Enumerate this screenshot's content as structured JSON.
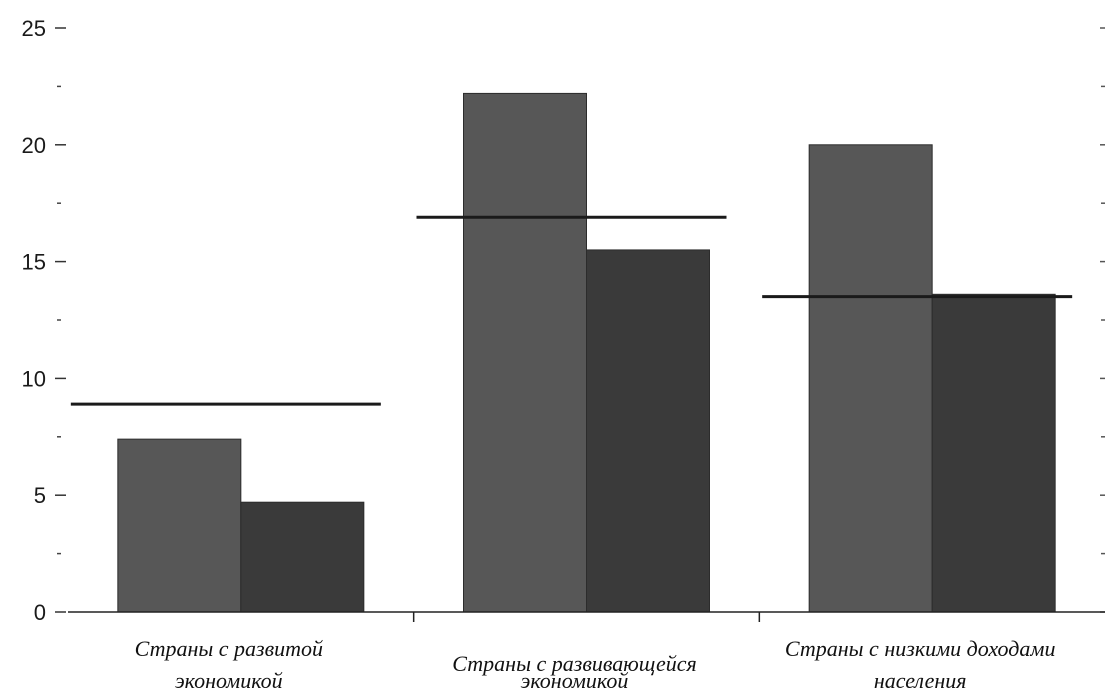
{
  "chart_data": {
    "type": "bar",
    "categories": [
      [
        "Страны с развитой",
        "экономикой"
      ],
      [
        "Страны с развивающейся",
        "экономикой"
      ],
      [
        "Страны с низкими доходами",
        "населения"
      ]
    ],
    "series": [
      {
        "values": [
          7.4,
          22.2,
          20.0
        ],
        "color": "#575757"
      },
      {
        "values": [
          4.7,
          15.5,
          13.6
        ],
        "color": "#3a3a3a"
      }
    ],
    "reference_lines": [
      8.9,
      16.9,
      13.5
    ],
    "reference_line_color": "#1a1a1a",
    "yticks": [
      0,
      5,
      10,
      15,
      20,
      25
    ],
    "ylim": [
      0,
      25
    ],
    "title": "",
    "xlabel": "",
    "ylabel": "",
    "grid": false,
    "legend": "none"
  }
}
